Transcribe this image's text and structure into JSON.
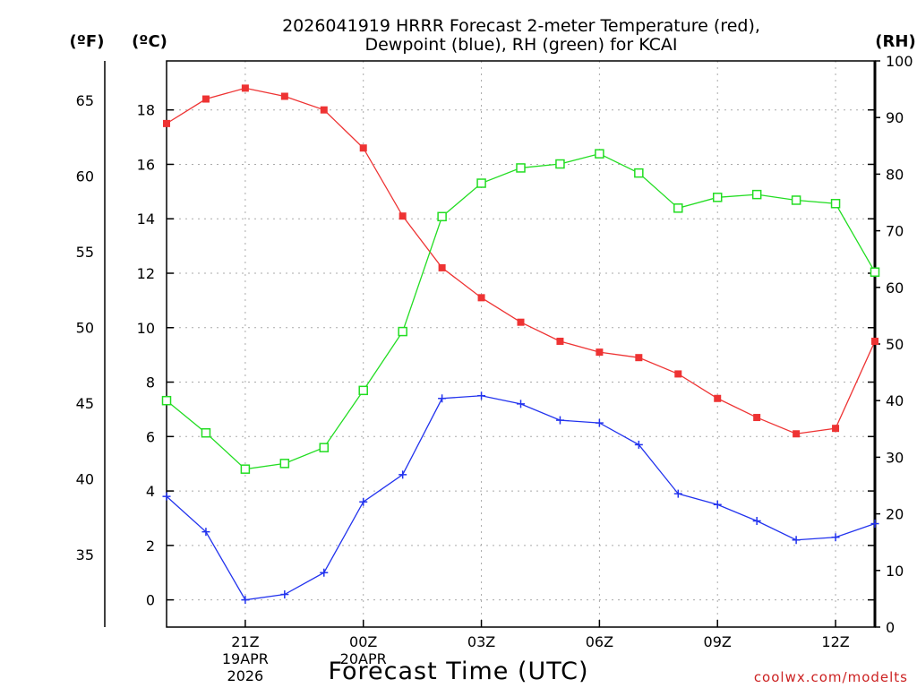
{
  "title": {
    "line1": "2026041919 HRRR Forecast 2-meter Temperature (red),",
    "line2": "Dewpoint (blue), RH (green) for KCAI"
  },
  "units": {
    "f": "(ºF)",
    "c": "(ºC)",
    "rh": "(RH)"
  },
  "xlabel": "Forecast Time (UTC)",
  "credit": "coolwx.com/modelts",
  "x_ticks": [
    {
      "hour": 21,
      "label": "21Z",
      "sub1": "19APR",
      "sub2": "2026"
    },
    {
      "hour": 24,
      "label": "00Z",
      "sub1": "20APR",
      "sub2": ""
    },
    {
      "hour": 27,
      "label": "03Z",
      "sub1": "",
      "sub2": ""
    },
    {
      "hour": 30,
      "label": "06Z",
      "sub1": "",
      "sub2": ""
    },
    {
      "hour": 33,
      "label": "09Z",
      "sub1": "",
      "sub2": ""
    },
    {
      "hour": 36,
      "label": "12Z",
      "sub1": "",
      "sub2": ""
    }
  ],
  "chart_data": {
    "type": "line",
    "title": "2026041919 HRRR Forecast 2-meter Temperature (red), Dewpoint (blue), RH (green) for KCAI",
    "xlabel": "Forecast Time (UTC)",
    "x_hours": [
      19,
      20,
      21,
      22,
      23,
      24,
      25,
      26,
      27,
      28,
      29,
      30,
      31,
      32,
      33,
      34,
      35,
      36,
      37
    ],
    "x_range": [
      19,
      37
    ],
    "y_left_c": {
      "label": "(ºC)",
      "range": [
        -1,
        19.8
      ],
      "ticks": [
        0,
        2,
        4,
        6,
        8,
        10,
        12,
        14,
        16,
        18
      ]
    },
    "y_left_f": {
      "label": "(ºF)",
      "range": [
        30.2,
        67.6
      ],
      "ticks": [
        35,
        40,
        45,
        50,
        55,
        60,
        65
      ]
    },
    "y_right_rh": {
      "label": "(RH)",
      "range": [
        0,
        100
      ],
      "ticks": [
        0,
        10,
        20,
        30,
        40,
        50,
        60,
        70,
        80,
        90,
        100
      ]
    },
    "series": [
      {
        "name": "2-meter Temperature",
        "color": "#ee3333",
        "marker": "filled-square",
        "axis": "c",
        "values": [
          17.5,
          18.4,
          18.8,
          18.5,
          18.0,
          16.6,
          14.1,
          12.2,
          11.1,
          10.2,
          9.5,
          9.1,
          8.9,
          8.3,
          7.4,
          6.7,
          6.1,
          6.3,
          9.5
        ]
      },
      {
        "name": "Dewpoint",
        "color": "#2233ee",
        "marker": "plus",
        "axis": "c",
        "values": [
          3.8,
          2.5,
          0.0,
          0.2,
          1.0,
          3.6,
          4.6,
          7.4,
          7.5,
          7.2,
          6.6,
          6.5,
          5.7,
          3.9,
          3.5,
          2.9,
          2.2,
          2.3,
          2.8
        ]
      },
      {
        "name": "RH",
        "color": "#22dd22",
        "marker": "open-square",
        "axis": "rh",
        "values": [
          40.0,
          34.3,
          27.9,
          28.9,
          31.7,
          41.8,
          52.2,
          72.5,
          78.4,
          81.1,
          81.8,
          83.6,
          80.2,
          74.0,
          75.9,
          76.4,
          75.4,
          74.8,
          62.7
        ]
      }
    ]
  }
}
